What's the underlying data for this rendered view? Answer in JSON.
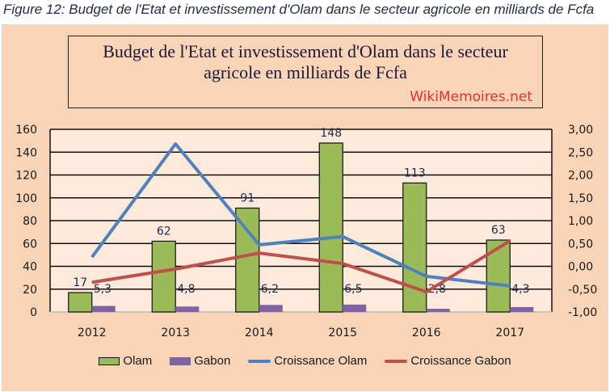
{
  "caption": "Figure 12: Budget de l'Etat et investissement d'Olam dans le secteur agricole en milliards de Fcfa",
  "title_box": {
    "line1": "Budget de l'Etat et investissement d'Olam dans le secteur",
    "line2": "agricole en milliards de Fcfa",
    "watermark": "WikiMemoires.net"
  },
  "colors": {
    "olam": "#9bbb59",
    "gabon": "#8064a2",
    "croissance_olam": "#4f81bd",
    "croissance_gabon": "#c0504d",
    "panel": "#fad4b6",
    "plot": "#fdeadb"
  },
  "chart_data": {
    "type": "bar",
    "title": "Budget de l'Etat et investissement d'Olam dans le secteur agricole en milliards de Fcfa",
    "categories": [
      "2012",
      "2013",
      "2014",
      "2015",
      "2016",
      "2017"
    ],
    "series": [
      {
        "name": "Olam",
        "type": "bar",
        "axis": "left",
        "values": [
          17,
          62,
          91,
          148,
          113,
          63
        ],
        "labels": [
          "17",
          "62",
          "91",
          "148",
          "113",
          "63"
        ]
      },
      {
        "name": "Gabon",
        "type": "bar",
        "axis": "left",
        "values": [
          5.3,
          4.8,
          6.2,
          6.5,
          2.8,
          4.3
        ],
        "labels": [
          "5,3",
          "4,8",
          "6,2",
          "6,5",
          "2,8",
          "4,3"
        ]
      },
      {
        "name": "Croissance Olam",
        "type": "line",
        "axis": "right",
        "values": [
          0.2,
          2.68,
          0.47,
          0.65,
          -0.22,
          -0.43
        ]
      },
      {
        "name": "Croissance Gabon",
        "type": "line",
        "axis": "right",
        "values": [
          -0.35,
          -0.06,
          0.29,
          0.06,
          -0.56,
          0.56
        ]
      }
    ],
    "y_left": {
      "min": 0,
      "max": 160,
      "ticks": [
        "0",
        "20",
        "40",
        "60",
        "80",
        "100",
        "120",
        "140",
        "160"
      ]
    },
    "y_right": {
      "min": -1,
      "max": 3,
      "ticks": [
        "-1,00",
        "-0,50",
        "0,00",
        "0,50",
        "1,00",
        "1,50",
        "2,00",
        "2,50",
        "3,00"
      ]
    },
    "xlabel": "",
    "ylabel": "",
    "grid": true,
    "legend_position": "bottom",
    "legend": [
      "Olam",
      "Gabon",
      "Croissance Olam",
      "Croissance Gabon"
    ]
  }
}
